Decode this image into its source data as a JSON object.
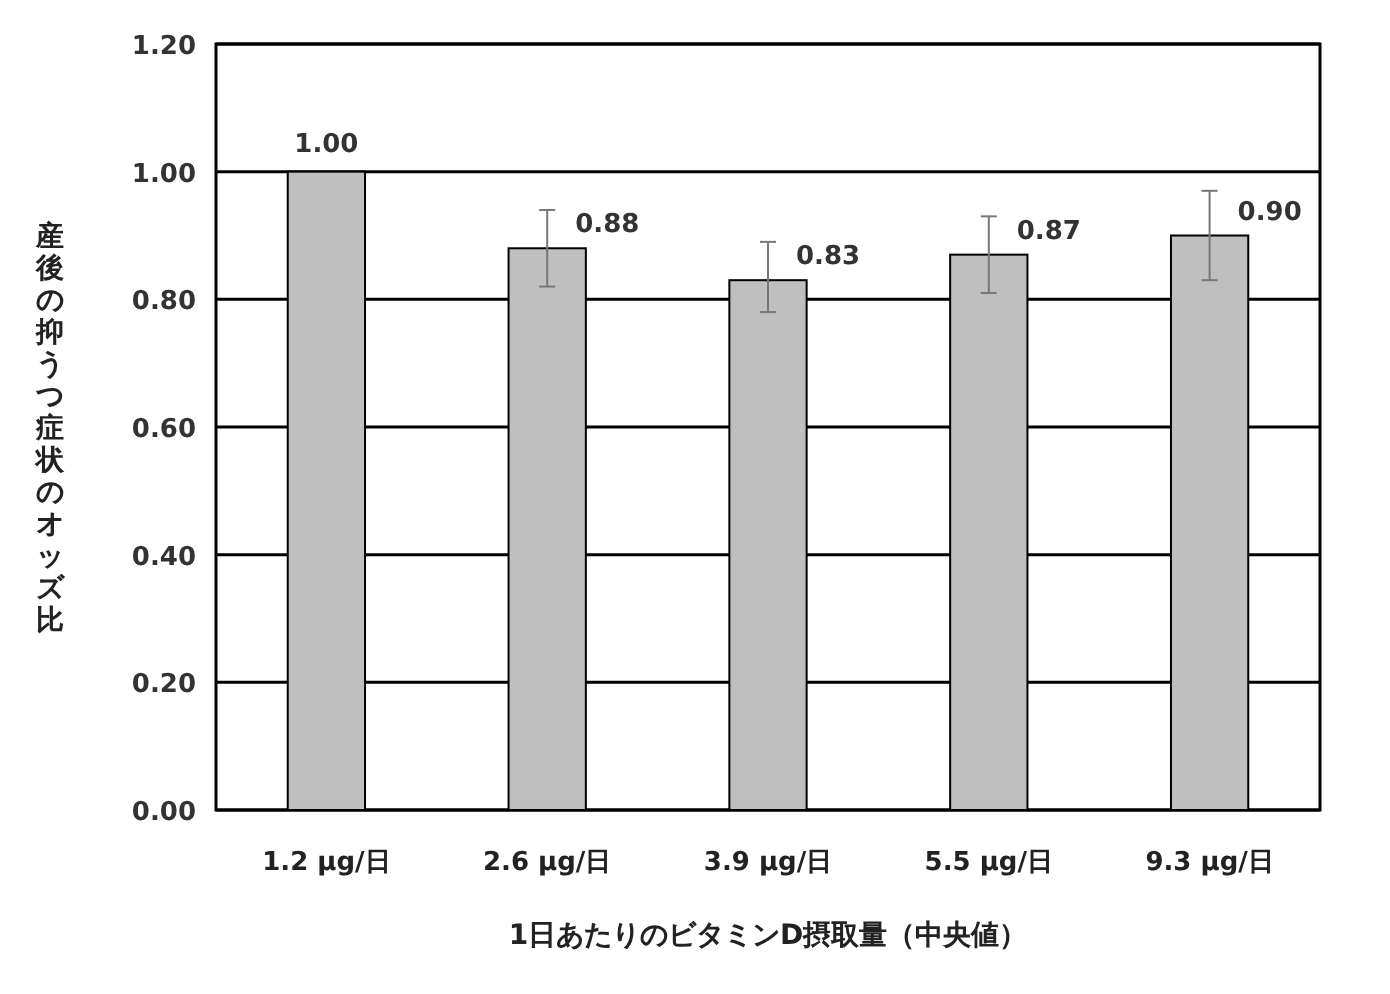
{
  "chart_data": {
    "type": "bar",
    "xlabel": "1日あたりのビタミンD摂取量（中央値）",
    "ylabel": "産後の抑うつ症状のオッズ比",
    "categories": [
      "1.2 μg/日",
      "2.6 μg/日",
      "3.9 μg/日",
      "5.5 μg/日",
      "9.3 μg/日"
    ],
    "values": [
      1.0,
      0.88,
      0.83,
      0.87,
      0.9
    ],
    "errors": [
      null,
      [
        0.82,
        0.94
      ],
      [
        0.78,
        0.89
      ],
      [
        0.81,
        0.93
      ],
      [
        0.83,
        0.97
      ]
    ],
    "color": "#bfbfbf",
    "ylim": [
      0,
      1.2
    ],
    "yticks": [
      {
        "value": 0,
        "label": "0.00"
      },
      {
        "value": 0.2,
        "label": "0.20"
      },
      {
        "value": 0.4,
        "label": "0.40"
      },
      {
        "value": 0.6,
        "label": "0.60"
      },
      {
        "value": 0.8,
        "label": "0.80"
      },
      {
        "value": 1.0,
        "label": "1.00"
      },
      {
        "value": 1.2,
        "label": "1.20"
      }
    ],
    "value_labels": [
      "1.00",
      "0.88",
      "0.83",
      "0.87",
      "0.90"
    ],
    "grid": "y"
  }
}
